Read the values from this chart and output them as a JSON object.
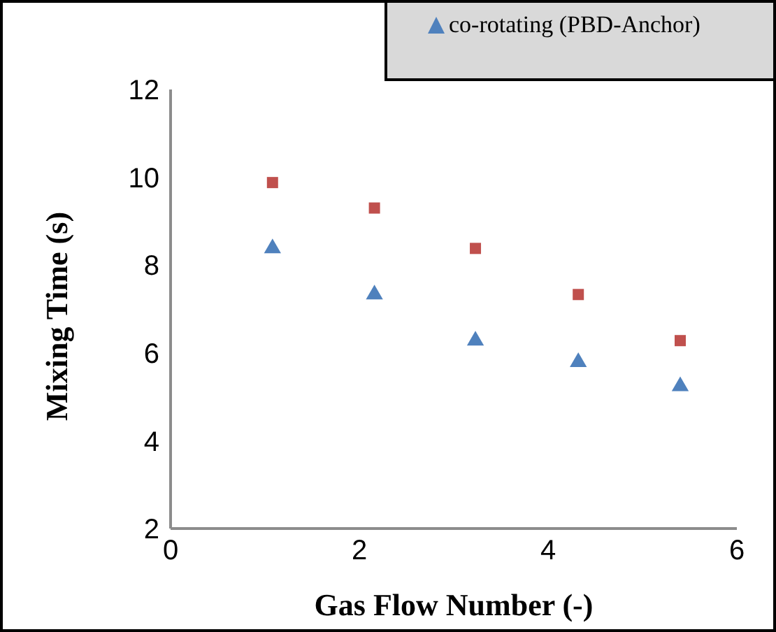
{
  "chart_data": {
    "type": "scatter",
    "xlabel": "Gas Flow Number (-)",
    "ylabel": "Mixing Time (s)",
    "xlim": [
      0,
      6
    ],
    "xticks": [
      0,
      2,
      4,
      6
    ],
    "ylim": [
      2,
      12
    ],
    "yticks": [
      2,
      4,
      6,
      8,
      10,
      12
    ],
    "legend": "top right",
    "x": [
      1.08,
      2.16,
      3.23,
      4.32,
      5.4
    ],
    "series": [
      {
        "color": "#c0504d",
        "marker": "square",
        "values": [
          9.88,
          9.3,
          8.38,
          7.33,
          6.28
        ]
      },
      {
        "name": "co-rotating (PBD-Anchor)",
        "color": "#4f81bd",
        "marker": "triangle",
        "values": [
          8.38,
          7.33,
          6.28,
          5.79,
          5.24
        ]
      }
    ]
  }
}
